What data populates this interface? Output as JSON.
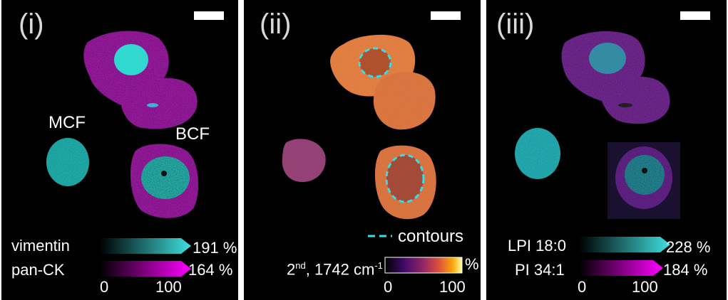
{
  "panels": [
    {
      "label": "(i)",
      "cell_labels": {
        "mcf": "MCF",
        "bcf": "BCF"
      },
      "legend": [
        {
          "name": "vimentin",
          "value": "191 %",
          "color": "#40e0e0"
        },
        {
          "name": "pan-CK",
          "value": "164 %",
          "color": "#ff00ff"
        }
      ],
      "axis": {
        "min": "0",
        "max": "100"
      }
    },
    {
      "label": "(ii)",
      "contours_label": "contours",
      "colorbar": {
        "prefix": "2",
        "sup": "nd",
        "mid": ", 1742 cm",
        "sup2": "-1",
        "unit": "%",
        "min": "0",
        "max": "100"
      }
    },
    {
      "label": "(iii)",
      "legend": [
        {
          "name": "LPI 18:0",
          "value": "228 %",
          "color": "#40e0e0"
        },
        {
          "name": "PI 34:1",
          "value": "184 %",
          "color": "#ff00ff"
        }
      ],
      "axis": {
        "min": "0",
        "max": "100"
      }
    }
  ],
  "colors": {
    "cyan": "#40e0e0",
    "magenta": "#ff00ff",
    "orange": "#f08a2a",
    "background": "#000000"
  }
}
